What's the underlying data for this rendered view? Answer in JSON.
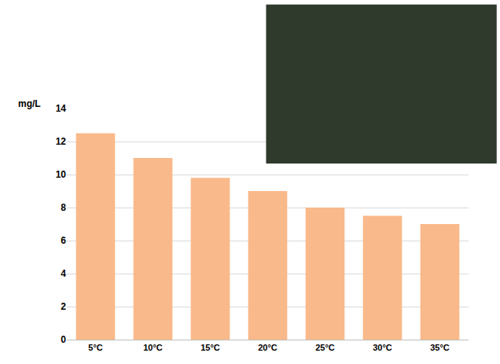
{
  "chart_data": {
    "type": "bar",
    "y_label": "mg/L",
    "categories": [
      "5°C",
      "10°C",
      "15°C",
      "20°C",
      "25°C",
      "30°C",
      "35°C"
    ],
    "values": [
      12.5,
      11,
      9.8,
      9,
      8,
      7.5,
      7
    ],
    "color": "#f9b98a",
    "ylim": [
      0,
      14
    ],
    "yticks": [
      0,
      2,
      4,
      6,
      8,
      10,
      12,
      14
    ],
    "grid": true
  }
}
